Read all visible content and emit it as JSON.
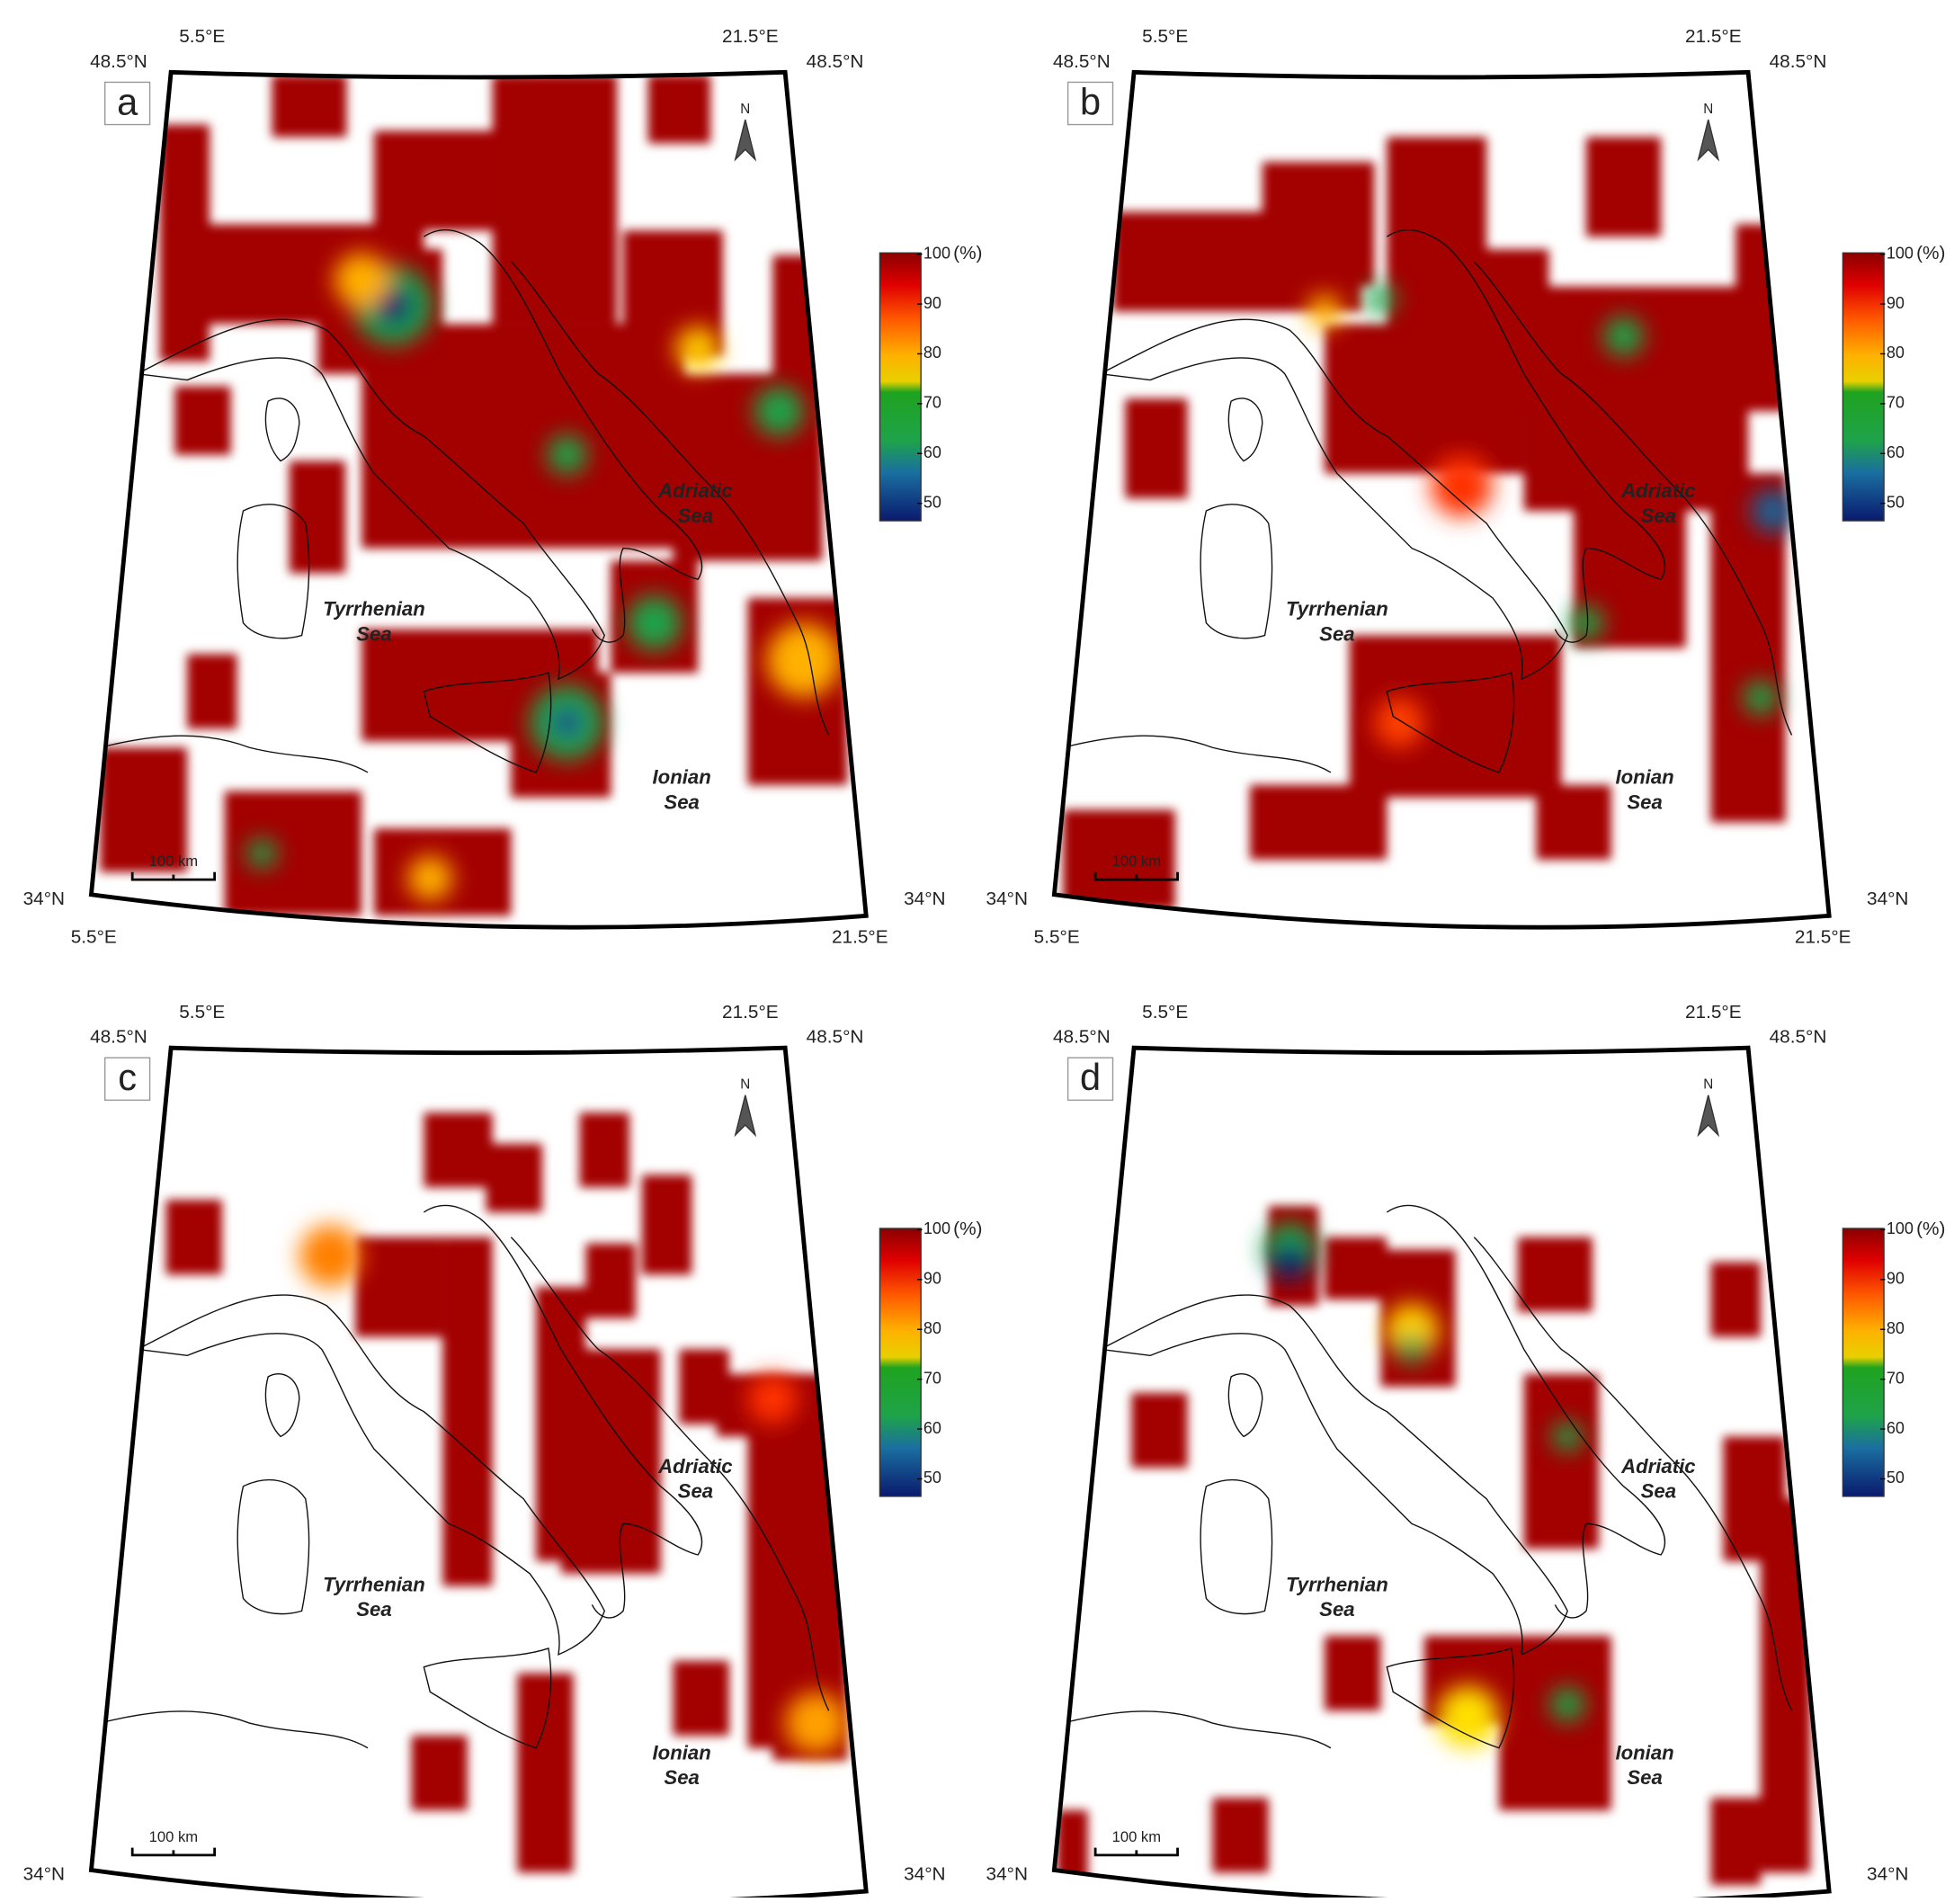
{
  "panels": [
    {
      "letter": "a",
      "lat_top_left": "48.5°N",
      "lat_top_right": "48.5°N",
      "lat_bottom_left": "34°N",
      "lat_bottom_right": "34°N",
      "lon_top_left": "5.5°E",
      "lon_top_right": "21.5°E",
      "lon_bottom_left": "5.5°E",
      "lon_bottom_right": "21.5°E",
      "north": "N",
      "scale": "100 km",
      "seas": {
        "adriatic": [
          "Adriatic",
          "Sea"
        ],
        "tyrrhenian": [
          "Tyrrhenian",
          "Sea"
        ],
        "ionian": [
          "Ionian",
          "Sea"
        ]
      },
      "colorbar": {
        "ticks": [
          100,
          90,
          80,
          70,
          60,
          50
        ],
        "unit": "(%)"
      }
    },
    {
      "letter": "b",
      "lat_top_left": "48.5°N",
      "lat_top_right": "48.5°N",
      "lat_bottom_left": "34°N",
      "lat_bottom_right": "34°N",
      "lon_top_left": "5.5°E",
      "lon_top_right": "21.5°E",
      "lon_bottom_left": "5.5°E",
      "lon_bottom_right": "21.5°E",
      "north": "N",
      "scale": "100 km",
      "seas": {
        "adriatic": [
          "Adriatic",
          "Sea"
        ],
        "tyrrhenian": [
          "Tyrrhenian",
          "Sea"
        ],
        "ionian": [
          "Ionian",
          "Sea"
        ]
      },
      "colorbar": {
        "ticks": [
          100,
          90,
          80,
          70,
          60,
          50
        ],
        "unit": "(%)"
      }
    },
    {
      "letter": "c",
      "lat_top_left": "48.5°N",
      "lat_top_right": "48.5°N",
      "lat_bottom_left": "34°N",
      "lat_bottom_right": "34°N",
      "lon_top_left": "5.5°E",
      "lon_top_right": "21.5°E",
      "north": "N",
      "scale": "100 km",
      "seas": {
        "adriatic": [
          "Adriatic",
          "Sea"
        ],
        "tyrrhenian": [
          "Tyrrhenian",
          "Sea"
        ],
        "ionian": [
          "Ionian",
          "Sea"
        ]
      },
      "colorbar": {
        "ticks": [
          100,
          90,
          80,
          70,
          60,
          50
        ],
        "unit": "(%)"
      }
    },
    {
      "letter": "d",
      "lat_top_left": "48.5°N",
      "lat_top_right": "48.5°N",
      "lat_bottom_left": "34°N",
      "lat_bottom_right": "34°N",
      "lon_top_left": "5.5°E",
      "lon_top_right": "21.5°E",
      "north": "N",
      "scale": "100 km",
      "seas": {
        "adriatic": [
          "Adriatic",
          "Sea"
        ],
        "tyrrhenian": [
          "Tyrrhenian",
          "Sea"
        ],
        "ionian": [
          "Ionian",
          "Sea"
        ]
      },
      "colorbar": {
        "ticks": [
          100,
          90,
          80,
          70,
          60,
          50
        ],
        "unit": "(%)"
      }
    }
  ]
}
